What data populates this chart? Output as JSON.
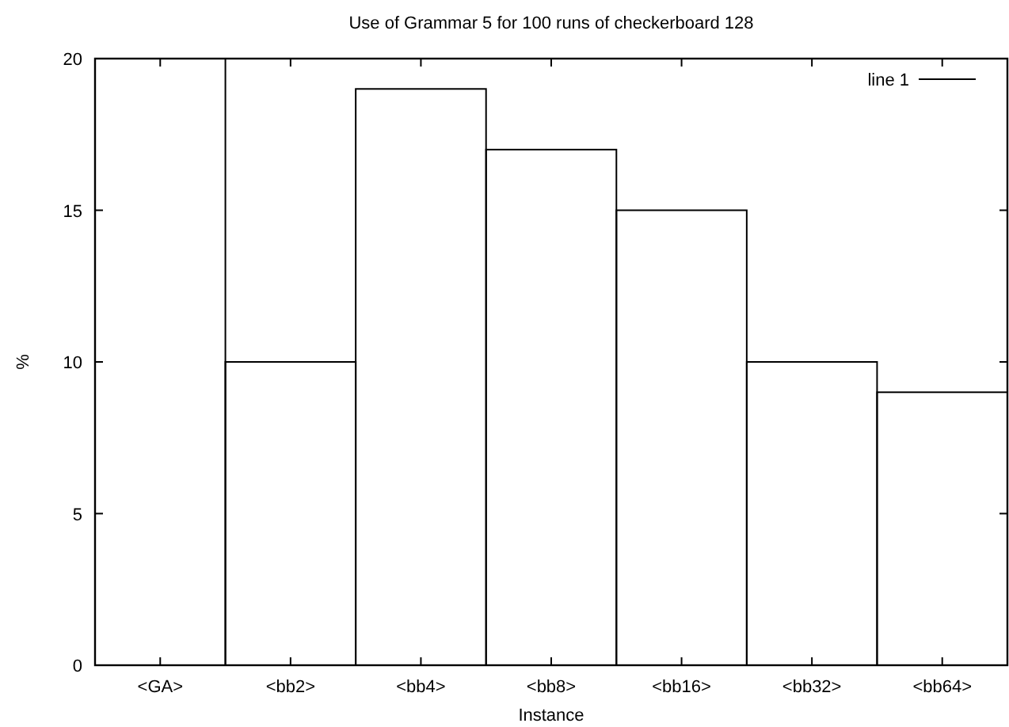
{
  "chart_data": {
    "type": "bar",
    "title": "Use of Grammar 5 for 100 runs of checkerboard 128",
    "xlabel": "Instance",
    "ylabel": "%",
    "categories": [
      "<GA>",
      "<bb2>",
      "<bb4>",
      "<bb8>",
      "<bb16>",
      "<bb32>",
      "<bb64>"
    ],
    "series": [
      {
        "name": "line 1",
        "color": "#000000",
        "values": [
          20,
          10,
          19,
          17,
          15,
          10,
          9
        ]
      }
    ],
    "ylim": [
      0,
      20
    ],
    "yticks": [
      0,
      5,
      10,
      15,
      20
    ],
    "legend": "top right",
    "grid": false
  }
}
